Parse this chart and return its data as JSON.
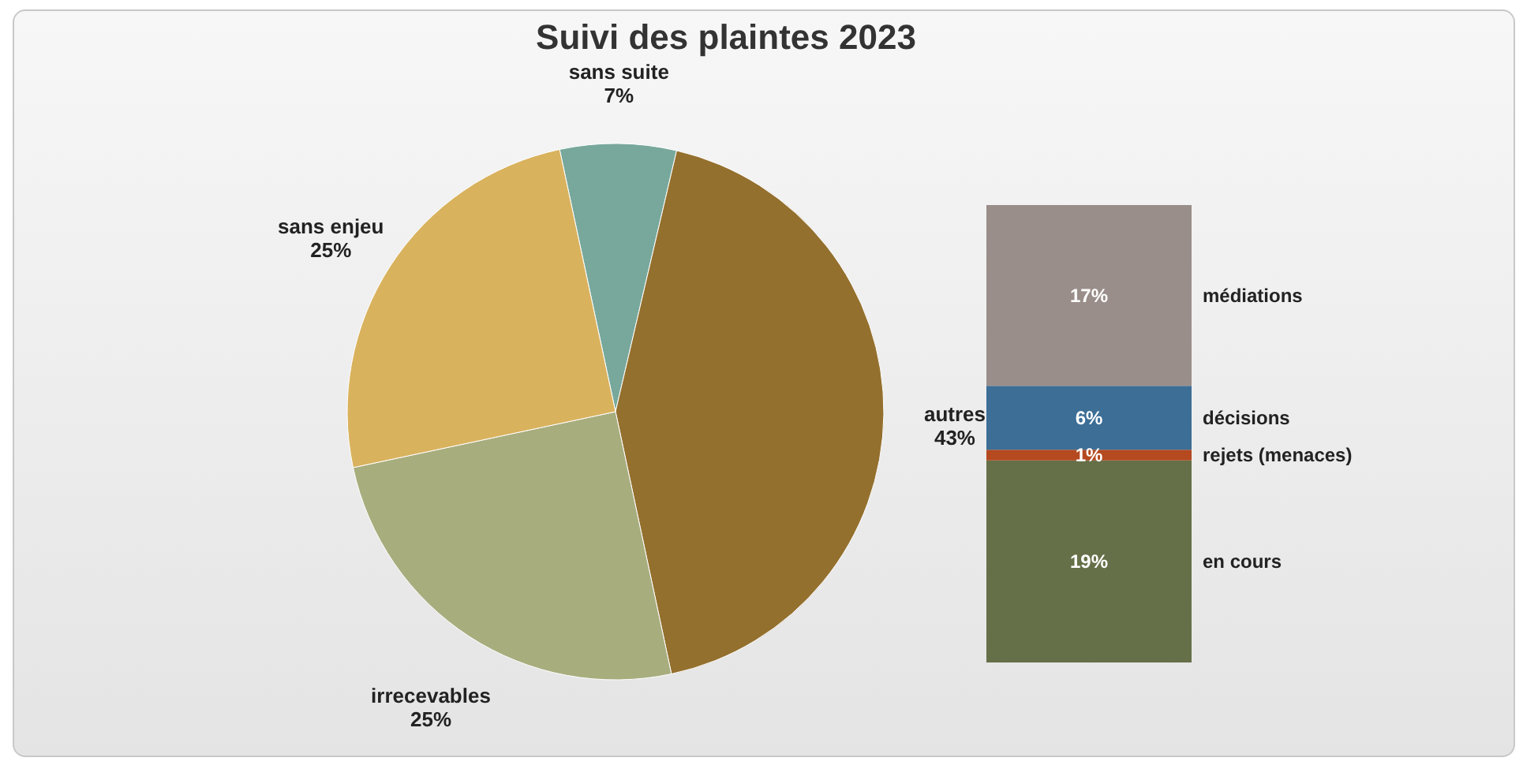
{
  "chart_data": [
    {
      "type": "pie",
      "title": "Suivi des plaintes 2023",
      "categories": [
        "sans suite",
        "autres",
        "irrecevables",
        "sans enjeu"
      ],
      "values": [
        7,
        43,
        25,
        25
      ],
      "colors": [
        "#78a89c",
        "#94702e",
        "#a8ad7e",
        "#d9b25e"
      ],
      "value_labels": [
        "7%",
        "43%",
        "25%",
        "25%"
      ]
    },
    {
      "type": "bar",
      "stacked": true,
      "categories": [
        null
      ],
      "series": [
        {
          "name": "en cours",
          "color": "#667048",
          "values": [
            19
          ],
          "value_labels": [
            "19%"
          ]
        },
        {
          "name": "rejets (menaces)",
          "color": "#b5491f",
          "values": [
            1
          ],
          "value_labels": [
            "1%"
          ]
        },
        {
          "name": "décisions",
          "color": "#3c6e96",
          "values": [
            6
          ],
          "value_labels": [
            "6%"
          ]
        },
        {
          "name": "médiations",
          "color": "#9a8e8a",
          "values": [
            17
          ],
          "value_labels": [
            "17%"
          ]
        }
      ]
    }
  ]
}
